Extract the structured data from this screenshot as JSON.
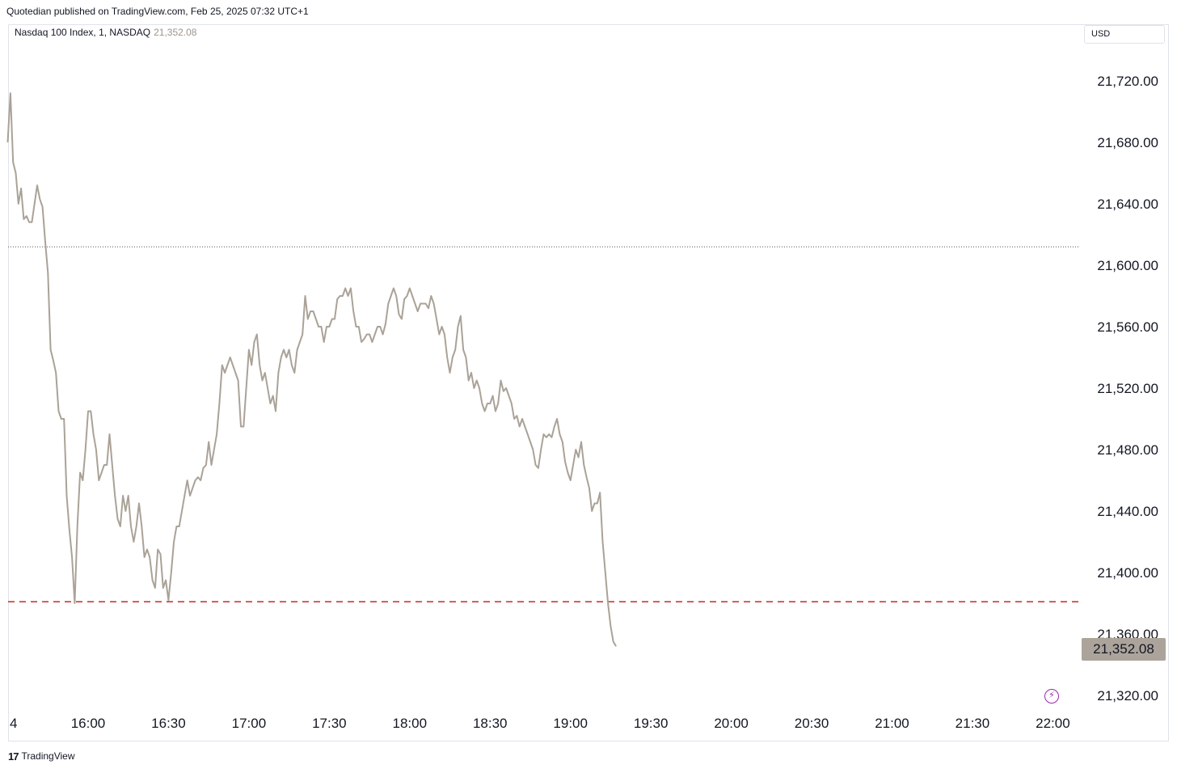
{
  "header": {
    "published": "Quotedian published on TradingView.com, Feb 25, 2025 07:32 UTC+1"
  },
  "legend": {
    "symbol": "Nasdaq 100 Index, 1, NASDAQ",
    "last": "21,352.08"
  },
  "currency": "USD",
  "footer": {
    "brand": "TradingView"
  },
  "icons": {
    "alert": "lightning-bolt-icon"
  },
  "colors": {
    "line": "#aaa297",
    "dashed_level": "#c62828",
    "dotted_level": "#555555",
    "price_tag": "#aca49b"
  },
  "chart_data": {
    "type": "line",
    "title": "",
    "xlabel": "",
    "ylabel": "",
    "ylim": [
      21300,
      21750
    ],
    "y_ticks": [
      21320,
      21360,
      21400,
      21440,
      21480,
      21520,
      21560,
      21600,
      21640,
      21680,
      21720
    ],
    "y_tick_labels": [
      "21,320.00",
      "21,360.00",
      "21,400.00",
      "21,440.00",
      "21,480.00",
      "21,520.00",
      "21,560.00",
      "21,600.00",
      "21,640.00",
      "21,680.00",
      "21,720.00"
    ],
    "x_ticks": [
      "4",
      "16:00",
      "16:30",
      "17:00",
      "17:30",
      "18:00",
      "18:30",
      "19:00",
      "19:30",
      "20:00",
      "20:30",
      "21:00",
      "21:30",
      "22:00"
    ],
    "x_tick_positions_min": [
      -50,
      0,
      30,
      60,
      90,
      120,
      150,
      180,
      210,
      240,
      270,
      300,
      330,
      360
    ],
    "time_start": "15:30",
    "last_value": 21352.08,
    "levels": [
      {
        "value": 21612,
        "style": "dotted"
      },
      {
        "value": 21381,
        "style": "dashed"
      }
    ],
    "series": [
      {
        "points": [
          [
            -30,
            21680
          ],
          [
            -29,
            21712
          ],
          [
            -28,
            21667
          ],
          [
            -27,
            21660
          ],
          [
            -26,
            21640
          ],
          [
            -25,
            21650
          ],
          [
            -24,
            21630
          ],
          [
            -23,
            21632
          ],
          [
            -22,
            21628
          ],
          [
            -21,
            21628
          ],
          [
            -20,
            21640
          ],
          [
            -19,
            21652
          ],
          [
            -18,
            21643
          ],
          [
            -17,
            21638
          ],
          [
            -16,
            21615
          ],
          [
            -15,
            21595
          ],
          [
            -14,
            21545
          ],
          [
            -13,
            21538
          ],
          [
            -12,
            21530
          ],
          [
            -11,
            21505
          ],
          [
            -10,
            21500
          ],
          [
            -9,
            21500
          ],
          [
            -8,
            21450
          ],
          [
            -7,
            21428
          ],
          [
            -6,
            21410
          ],
          [
            -5,
            21380
          ],
          [
            -4,
            21430
          ],
          [
            -3,
            21465
          ],
          [
            -2,
            21460
          ],
          [
            -1,
            21480
          ],
          [
            0,
            21505
          ],
          [
            1,
            21505
          ],
          [
            2,
            21490
          ],
          [
            3,
            21480
          ],
          [
            4,
            21460
          ],
          [
            5,
            21465
          ],
          [
            6,
            21470
          ],
          [
            7,
            21470
          ],
          [
            8,
            21490
          ],
          [
            9,
            21470
          ],
          [
            10,
            21450
          ],
          [
            11,
            21435
          ],
          [
            12,
            21430
          ],
          [
            13,
            21450
          ],
          [
            14,
            21440
          ],
          [
            15,
            21450
          ],
          [
            16,
            21430
          ],
          [
            17,
            21420
          ],
          [
            18,
            21430
          ],
          [
            19,
            21445
          ],
          [
            20,
            21430
          ],
          [
            21,
            21410
          ],
          [
            22,
            21415
          ],
          [
            23,
            21410
          ],
          [
            24,
            21395
          ],
          [
            25,
            21390
          ],
          [
            26,
            21415
          ],
          [
            27,
            21412
          ],
          [
            28,
            21390
          ],
          [
            29,
            21395
          ],
          [
            30,
            21382
          ],
          [
            31,
            21400
          ],
          [
            32,
            21420
          ],
          [
            33,
            21430
          ],
          [
            34,
            21430
          ],
          [
            35,
            21440
          ],
          [
            36,
            21450
          ],
          [
            37,
            21460
          ],
          [
            38,
            21450
          ],
          [
            39,
            21455
          ],
          [
            40,
            21460
          ],
          [
            41,
            21462
          ],
          [
            42,
            21460
          ],
          [
            43,
            21468
          ],
          [
            44,
            21470
          ],
          [
            45,
            21485
          ],
          [
            46,
            21470
          ],
          [
            47,
            21480
          ],
          [
            48,
            21490
          ],
          [
            49,
            21510
          ],
          [
            50,
            21535
          ],
          [
            51,
            21530
          ],
          [
            52,
            21535
          ],
          [
            53,
            21540
          ],
          [
            54,
            21535
          ],
          [
            55,
            21530
          ],
          [
            56,
            21525
          ],
          [
            57,
            21495
          ],
          [
            58,
            21495
          ],
          [
            59,
            21520
          ],
          [
            60,
            21545
          ],
          [
            61,
            21535
          ],
          [
            62,
            21550
          ],
          [
            63,
            21555
          ],
          [
            64,
            21535
          ],
          [
            65,
            21525
          ],
          [
            66,
            21530
          ],
          [
            67,
            21520
          ],
          [
            68,
            21510
          ],
          [
            69,
            21515
          ],
          [
            70,
            21505
          ],
          [
            71,
            21530
          ],
          [
            72,
            21540
          ],
          [
            73,
            21545
          ],
          [
            74,
            21540
          ],
          [
            75,
            21545
          ],
          [
            76,
            21535
          ],
          [
            77,
            21530
          ],
          [
            78,
            21545
          ],
          [
            79,
            21550
          ],
          [
            80,
            21555
          ],
          [
            81,
            21580
          ],
          [
            82,
            21565
          ],
          [
            83,
            21570
          ],
          [
            84,
            21570
          ],
          [
            85,
            21565
          ],
          [
            86,
            21560
          ],
          [
            87,
            21560
          ],
          [
            88,
            21550
          ],
          [
            89,
            21560
          ],
          [
            90,
            21560
          ],
          [
            91,
            21565
          ],
          [
            92,
            21565
          ],
          [
            93,
            21578
          ],
          [
            94,
            21580
          ],
          [
            95,
            21580
          ],
          [
            96,
            21585
          ],
          [
            97,
            21580
          ],
          [
            98,
            21585
          ],
          [
            99,
            21570
          ],
          [
            100,
            21560
          ],
          [
            101,
            21560
          ],
          [
            102,
            21550
          ],
          [
            103,
            21552
          ],
          [
            104,
            21555
          ],
          [
            105,
            21555
          ],
          [
            106,
            21550
          ],
          [
            107,
            21555
          ],
          [
            108,
            21560
          ],
          [
            109,
            21560
          ],
          [
            110,
            21555
          ],
          [
            111,
            21562
          ],
          [
            112,
            21575
          ],
          [
            113,
            21580
          ],
          [
            114,
            21585
          ],
          [
            115,
            21580
          ],
          [
            116,
            21568
          ],
          [
            117,
            21565
          ],
          [
            118,
            21578
          ],
          [
            119,
            21580
          ],
          [
            120,
            21585
          ],
          [
            121,
            21580
          ],
          [
            122,
            21575
          ],
          [
            123,
            21570
          ],
          [
            124,
            21575
          ],
          [
            125,
            21575
          ],
          [
            126,
            21575
          ],
          [
            127,
            21572
          ],
          [
            128,
            21580
          ],
          [
            129,
            21575
          ],
          [
            130,
            21565
          ],
          [
            131,
            21555
          ],
          [
            132,
            21560
          ],
          [
            133,
            21555
          ],
          [
            134,
            21540
          ],
          [
            135,
            21530
          ],
          [
            136,
            21540
          ],
          [
            137,
            21545
          ],
          [
            138,
            21560
          ],
          [
            139,
            21567
          ],
          [
            140,
            21545
          ],
          [
            141,
            21540
          ],
          [
            142,
            21525
          ],
          [
            143,
            21530
          ],
          [
            144,
            21520
          ],
          [
            145,
            21525
          ],
          [
            146,
            21520
          ],
          [
            147,
            21510
          ],
          [
            148,
            21505
          ],
          [
            149,
            21510
          ],
          [
            150,
            21510
          ],
          [
            151,
            21515
          ],
          [
            152,
            21505
          ],
          [
            153,
            21510
          ],
          [
            154,
            21525
          ],
          [
            155,
            21518
          ],
          [
            156,
            21520
          ],
          [
            157,
            21515
          ],
          [
            158,
            21510
          ],
          [
            159,
            21500
          ],
          [
            160,
            21502
          ],
          [
            161,
            21495
          ],
          [
            162,
            21500
          ],
          [
            163,
            21495
          ],
          [
            164,
            21490
          ],
          [
            165,
            21485
          ],
          [
            166,
            21480
          ],
          [
            167,
            21470
          ],
          [
            168,
            21468
          ],
          [
            169,
            21480
          ],
          [
            170,
            21490
          ],
          [
            171,
            21488
          ],
          [
            172,
            21490
          ],
          [
            173,
            21488
          ],
          [
            174,
            21495
          ],
          [
            175,
            21500
          ],
          [
            176,
            21490
          ],
          [
            177,
            21485
          ],
          [
            178,
            21472
          ],
          [
            179,
            21465
          ],
          [
            180,
            21460
          ],
          [
            181,
            21470
          ],
          [
            182,
            21480
          ],
          [
            183,
            21475
          ],
          [
            184,
            21485
          ],
          [
            185,
            21470
          ],
          [
            186,
            21462
          ],
          [
            187,
            21455
          ],
          [
            188,
            21440
          ],
          [
            189,
            21445
          ],
          [
            190,
            21445
          ],
          [
            191,
            21452
          ],
          [
            192,
            21420
          ],
          [
            193,
            21400
          ],
          [
            194,
            21380
          ],
          [
            195,
            21365
          ],
          [
            196,
            21355
          ],
          [
            197,
            21352
          ]
        ]
      }
    ]
  }
}
